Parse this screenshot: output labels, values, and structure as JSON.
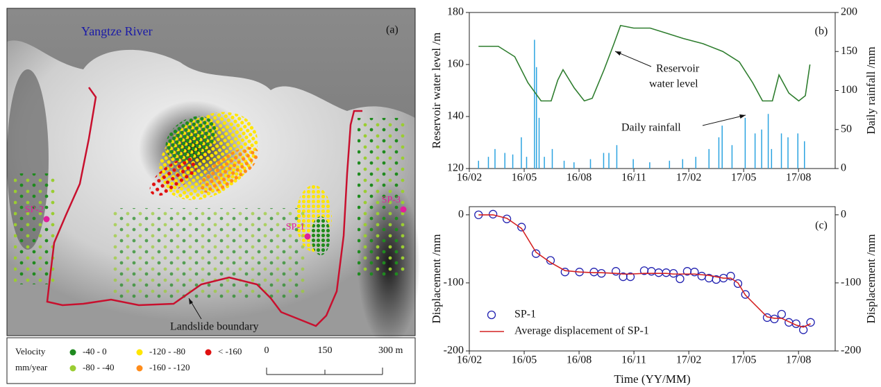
{
  "map": {
    "panel_label": "(a)",
    "river_label": "Yangtze River",
    "boundary_label": "Landslide boundary",
    "points": [
      "SP-2",
      "SP-1",
      "SP-3"
    ],
    "point_color": "#e0209a",
    "boundary_color": "#c8102e",
    "legend": {
      "title": [
        "Velocity",
        "mm/year"
      ],
      "classes": [
        {
          "label": "-40 - 0",
          "color": "#1f8a1f"
        },
        {
          "label": "-80 - -40",
          "color": "#9acd32"
        },
        {
          "label": "-120 - -80",
          "color": "#ffe600"
        },
        {
          "label": "-160 - -120",
          "color": "#ff8c1a"
        },
        {
          "label": "< -160",
          "color": "#e01010"
        }
      ]
    },
    "scale_bar": [
      "0",
      "150",
      "300 m"
    ]
  },
  "chart_data": [
    {
      "type": "line",
      "panel_label": "(b)",
      "y_label": "Reservoir water level /m",
      "y2_label": "Daily rainfall /mm",
      "xlim": [
        2016.083,
        2017.75
      ],
      "xticks": [
        {
          "value": 2016.083,
          "label": "16/02"
        },
        {
          "value": 2016.333,
          "label": "16/05"
        },
        {
          "value": 2016.583,
          "label": "16/08"
        },
        {
          "value": 2016.833,
          "label": "16/11"
        },
        {
          "value": 2017.083,
          "label": "17/02"
        },
        {
          "value": 2017.333,
          "label": "17/05"
        },
        {
          "value": 2017.583,
          "label": "17/08"
        }
      ],
      "ylim": [
        120,
        180
      ],
      "yticks": [
        120,
        140,
        160,
        180
      ],
      "y2lim": [
        0,
        200
      ],
      "y2ticks": [
        0,
        50,
        100,
        150,
        200
      ],
      "annotations": [
        {
          "text": [
            "Reservoir",
            "water level"
          ]
        },
        {
          "text": "Daily rainfall"
        }
      ],
      "series": [
        {
          "kind": "spike",
          "axis": "y2",
          "color": "#2aa3e0",
          "x": [
            2016.125,
            2016.17,
            2016.2,
            2016.245,
            2016.281,
            2016.32,
            2016.344,
            2016.38,
            2016.389,
            2016.401,
            2016.425,
            2016.461,
            2016.515,
            2016.56,
            2016.635,
            2016.695,
            2016.719,
            2016.755,
            2016.83,
            2016.905,
            2016.995,
            2017.055,
            2017.115,
            2017.175,
            2017.22,
            2017.235,
            2017.28,
            2017.34,
            2017.385,
            2017.415,
            2017.445,
            2017.46,
            2017.505,
            2017.535,
            2017.58,
            2017.61
          ],
          "values": [
            10,
            15,
            25,
            20,
            18,
            40,
            15,
            165,
            130,
            65,
            15,
            25,
            10,
            8,
            12,
            20,
            20,
            30,
            12,
            8,
            10,
            12,
            15,
            25,
            40,
            55,
            30,
            65,
            45,
            50,
            70,
            25,
            45,
            40,
            45,
            35
          ]
        },
        {
          "kind": "line",
          "axis": "y",
          "color": "#2e7d2e",
          "x": [
            2016.125,
            2016.215,
            2016.29,
            2016.35,
            2016.41,
            2016.456,
            2016.486,
            2016.51,
            2016.561,
            2016.607,
            2016.643,
            2016.697,
            2016.742,
            2016.772,
            2016.832,
            2016.907,
            2016.983,
            2017.058,
            2017.148,
            2017.238,
            2017.313,
            2017.374,
            2017.419,
            2017.464,
            2017.479,
            2017.494,
            2017.539,
            2017.584,
            2017.614,
            2017.635
          ],
          "values": [
            167,
            167,
            163,
            153,
            146,
            146,
            154,
            158,
            151,
            146,
            147,
            158,
            168,
            175,
            174,
            174,
            172,
            170,
            168,
            165,
            161,
            153,
            146,
            146,
            151,
            156,
            149,
            146,
            148,
            160
          ]
        }
      ]
    },
    {
      "type": "line",
      "panel_label": "(c)",
      "x_label": "Time (YY/MM)",
      "y_label": "Displacement /mm",
      "y2_label": "Displacement /mm",
      "legend": "lower left",
      "xlim": [
        2016.083,
        2017.75
      ],
      "xticks": [
        {
          "value": 2016.083,
          "label": "16/02"
        },
        {
          "value": 2016.333,
          "label": "16/05"
        },
        {
          "value": 2016.583,
          "label": "16/08"
        },
        {
          "value": 2016.833,
          "label": "16/11"
        },
        {
          "value": 2017.083,
          "label": "17/02"
        },
        {
          "value": 2017.333,
          "label": "17/05"
        },
        {
          "value": 2017.583,
          "label": "17/08"
        }
      ],
      "ylim": [
        -200,
        12
      ],
      "yticks": [
        0,
        -100,
        -200
      ],
      "y2lim": [
        -200,
        12
      ],
      "y2ticks": [
        0,
        -100,
        -200
      ],
      "series": [
        {
          "name": "SP-1",
          "kind": "marker",
          "axis": "y",
          "color": "#2020b0",
          "x": [
            2016.125,
            2016.191,
            2016.254,
            2016.321,
            2016.387,
            2016.453,
            2016.519,
            2016.585,
            2016.651,
            2016.685,
            2016.751,
            2016.784,
            2016.817,
            2016.88,
            2016.913,
            2016.946,
            2016.98,
            2017.013,
            2017.043,
            2017.076,
            2017.109,
            2017.142,
            2017.175,
            2017.208,
            2017.241,
            2017.274,
            2017.307,
            2017.341,
            2017.44,
            2017.473,
            2017.506,
            2017.539,
            2017.572,
            2017.605,
            2017.638
          ],
          "values": [
            0,
            1,
            -6,
            -18,
            -57,
            -67,
            -84,
            -84,
            -84,
            -86,
            -83,
            -91,
            -91,
            -82,
            -83,
            -85,
            -85,
            -86,
            -94,
            -83,
            -84,
            -90,
            -93,
            -95,
            -93,
            -90,
            -101,
            -117,
            -151,
            -153,
            -146,
            -158,
            -160,
            -169,
            -158
          ]
        },
        {
          "name": "Average displacement of SP-1",
          "kind": "line",
          "axis": "y",
          "color": "#d42020",
          "x": [
            2016.125,
            2016.191,
            2016.254,
            2016.321,
            2016.387,
            2016.453,
            2016.519,
            2016.585,
            2016.651,
            2016.685,
            2016.751,
            2016.784,
            2016.817,
            2016.88,
            2016.913,
            2016.946,
            2016.98,
            2017.013,
            2017.043,
            2017.076,
            2017.109,
            2017.142,
            2017.175,
            2017.208,
            2017.241,
            2017.274,
            2017.307,
            2017.341,
            2017.44,
            2017.473,
            2017.506,
            2017.539,
            2017.572,
            2017.605,
            2017.638
          ],
          "values": [
            0,
            0,
            -5,
            -20,
            -55,
            -70,
            -82,
            -84,
            -85,
            -85,
            -86,
            -87,
            -87,
            -86,
            -86,
            -86,
            -86,
            -87,
            -87,
            -87,
            -87,
            -88,
            -89,
            -91,
            -93,
            -93,
            -100,
            -118,
            -150,
            -152,
            -152,
            -157,
            -162,
            -165,
            -160
          ]
        }
      ]
    }
  ]
}
